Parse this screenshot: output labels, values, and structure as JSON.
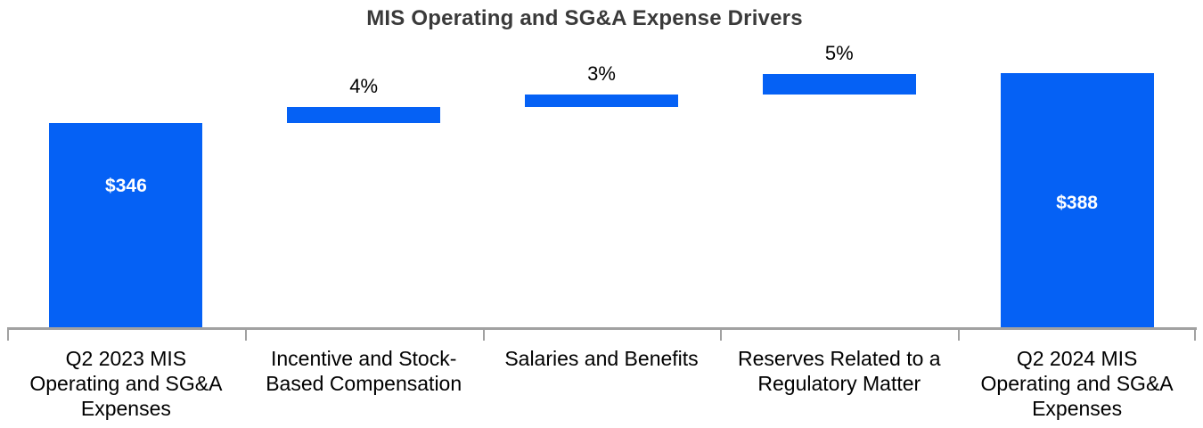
{
  "chart_data": {
    "type": "bar",
    "subtype": "waterfall",
    "title": "MIS Operating and SG&A Expense Drivers",
    "accent_color": "#0561F5",
    "axis_color": "#a1a1a1",
    "legend": false,
    "gridlines": false,
    "categories": [
      "Q2 2023 MIS\nOperating and SG&A\nExpenses",
      "Incentive and Stock-\nBased Compensation",
      "Salaries and Benefits",
      "Reserves Related to a\nRegulatory Matter",
      "Q2 2024 MIS\nOperating and SG&A\nExpenses"
    ],
    "bars": [
      {
        "kind": "total",
        "value": 346,
        "label": "$346"
      },
      {
        "kind": "delta",
        "pct_of_base": 4,
        "label": "4%"
      },
      {
        "kind": "delta",
        "pct_of_base": 3,
        "label": "3%"
      },
      {
        "kind": "delta",
        "pct_of_base": 5,
        "label": "5%"
      },
      {
        "kind": "total",
        "value": 388,
        "label": "$388"
      }
    ]
  }
}
